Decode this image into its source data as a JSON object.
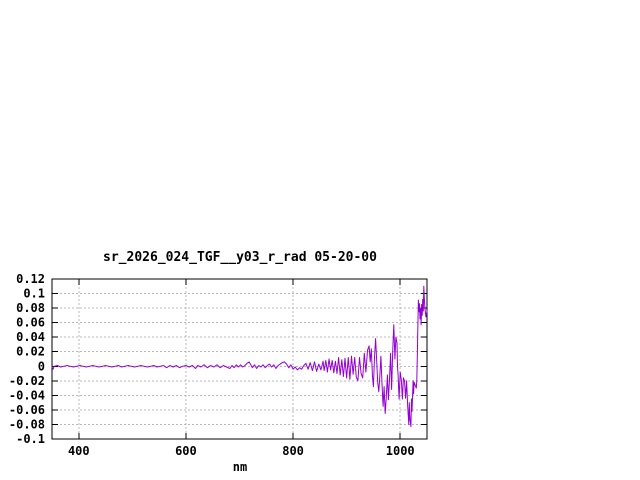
{
  "chart_data": {
    "type": "line",
    "title": "sr_2026_024_TGF__y03_r_rad 05-20-00",
    "xlabel": "nm",
    "ylabel": "",
    "xlim": [
      350,
      1050
    ],
    "ylim": [
      -0.1,
      0.12
    ],
    "grid": true,
    "legend": "none",
    "x_tick_values": [
      400,
      600,
      800,
      1000
    ],
    "x_tick_labels": [
      "400",
      "600",
      "800",
      "1000"
    ],
    "y_tick_values": [
      0.12,
      0.1,
      0.08,
      0.06,
      0.04,
      0.02,
      0,
      -0.02,
      -0.04,
      -0.06,
      -0.08,
      -0.1
    ],
    "y_tick_labels": [
      "0.12",
      "0.1",
      "0.08",
      "0.06",
      "0.04",
      "0.02",
      "0",
      "-0.02",
      "-0.04",
      "-0.06",
      "-0.08",
      "-0.1"
    ],
    "colors": {
      "line": "#9400d3",
      "grid": "#b8b8b8",
      "border": "#000000",
      "background": "#ffffff",
      "text": "#000000"
    },
    "series": [
      {
        "name": "sr_2026_024_TGF__y03_r_rad",
        "color": "#9400d3",
        "points": [
          [
            350,
            -0.001
          ],
          [
            352,
            -0.004
          ],
          [
            354,
            0
          ],
          [
            360,
            0.001
          ],
          [
            366,
            -0.001
          ],
          [
            372,
            0
          ],
          [
            378,
            0.001
          ],
          [
            384,
            0
          ],
          [
            390,
            -0.001
          ],
          [
            396,
            0
          ],
          [
            402,
            0.001
          ],
          [
            408,
            0
          ],
          [
            414,
            -0.001
          ],
          [
            420,
            0
          ],
          [
            426,
            0.001
          ],
          [
            432,
            0
          ],
          [
            438,
            -0.001
          ],
          [
            444,
            0
          ],
          [
            450,
            0.001
          ],
          [
            456,
            0
          ],
          [
            462,
            -0.001
          ],
          [
            468,
            0
          ],
          [
            474,
            0.001
          ],
          [
            480,
            -0.001
          ],
          [
            486,
            0
          ],
          [
            492,
            0.001
          ],
          [
            498,
            0
          ],
          [
            504,
            -0.001
          ],
          [
            510,
            0
          ],
          [
            516,
            0.001
          ],
          [
            522,
            0
          ],
          [
            528,
            -0.001
          ],
          [
            534,
            0
          ],
          [
            540,
            0.001
          ],
          [
            546,
            -0.001
          ],
          [
            552,
            0
          ],
          [
            558,
            0.001
          ],
          [
            564,
            -0.002
          ],
          [
            570,
            0.001
          ],
          [
            576,
            -0.001
          ],
          [
            582,
            0.001
          ],
          [
            588,
            -0.002
          ],
          [
            594,
            0
          ],
          [
            600,
            0.001
          ],
          [
            606,
            -0.001
          ],
          [
            612,
            0.001
          ],
          [
            618,
            -0.003
          ],
          [
            622,
            0.001
          ],
          [
            628,
            -0.001
          ],
          [
            634,
            0.002
          ],
          [
            640,
            -0.002
          ],
          [
            646,
            0.001
          ],
          [
            652,
            -0.001
          ],
          [
            658,
            0.002
          ],
          [
            664,
            -0.002
          ],
          [
            670,
            0.001
          ],
          [
            676,
            -0.001
          ],
          [
            682,
            -0.003
          ],
          [
            686,
            0.001
          ],
          [
            690,
            -0.002
          ],
          [
            694,
            0.002
          ],
          [
            698,
            -0.001
          ],
          [
            702,
            0.002
          ],
          [
            706,
            -0.001
          ],
          [
            710,
            0.001
          ],
          [
            714,
            0.004
          ],
          [
            718,
            0.006
          ],
          [
            721,
            0.002
          ],
          [
            724,
            -0.002
          ],
          [
            728,
            0.002
          ],
          [
            732,
            -0.003
          ],
          [
            736,
            0.001
          ],
          [
            740,
            -0.001
          ],
          [
            744,
            0.002
          ],
          [
            748,
            -0.002
          ],
          [
            752,
            0.001
          ],
          [
            756,
            0.003
          ],
          [
            760,
            -0.001
          ],
          [
            764,
            0.002
          ],
          [
            768,
            -0.003
          ],
          [
            772,
            0.001
          ],
          [
            776,
            0.003
          ],
          [
            780,
            0.005
          ],
          [
            784,
            0.006
          ],
          [
            788,
            0.003
          ],
          [
            792,
            -0.002
          ],
          [
            796,
            0.002
          ],
          [
            800,
            -0.004
          ],
          [
            804,
            -0.001
          ],
          [
            808,
            -0.005
          ],
          [
            812,
            -0.002
          ],
          [
            816,
            -0.004
          ],
          [
            820,
            0.001
          ],
          [
            824,
            0.004
          ],
          [
            828,
            -0.004
          ],
          [
            832,
            0.005
          ],
          [
            836,
            -0.006
          ],
          [
            840,
            0.006
          ],
          [
            844,
            -0.007
          ],
          [
            848,
            0.003
          ],
          [
            852,
            -0.005
          ],
          [
            856,
            0.007
          ],
          [
            858,
            -0.006
          ],
          [
            861,
            0.008
          ],
          [
            864,
            -0.008
          ],
          [
            867,
            0.01
          ],
          [
            870,
            -0.005
          ],
          [
            873,
            0.008
          ],
          [
            876,
            -0.009
          ],
          [
            879,
            0.007
          ],
          [
            882,
            -0.01
          ],
          [
            885,
            0.012
          ],
          [
            888,
            -0.012
          ],
          [
            891,
            0.009
          ],
          [
            894,
            -0.014
          ],
          [
            897,
            0.011
          ],
          [
            900,
            -0.016
          ],
          [
            903,
            0.012
          ],
          [
            906,
            -0.018
          ],
          [
            909,
            0.014
          ],
          [
            912,
            -0.011
          ],
          [
            915,
            0.012
          ],
          [
            918,
            -0.015
          ],
          [
            921,
            -0.02
          ],
          [
            924,
            0.012
          ],
          [
            927,
            -0.01
          ],
          [
            930,
            -0.016
          ],
          [
            933,
            0.018
          ],
          [
            936,
            -0.008
          ],
          [
            939,
            0.022
          ],
          [
            942,
            0.028
          ],
          [
            944,
            0.006
          ],
          [
            946,
            0.024
          ],
          [
            948,
            -0.012
          ],
          [
            950,
            -0.028
          ],
          [
            952,
            0.012
          ],
          [
            954,
            0.038
          ],
          [
            956,
            0.01
          ],
          [
            958,
            -0.022
          ],
          [
            960,
            -0.035
          ],
          [
            962,
            -0.012
          ],
          [
            964,
            0.014
          ],
          [
            966,
            -0.024
          ],
          [
            968,
            -0.055
          ],
          [
            970,
            -0.028
          ],
          [
            972,
            -0.065
          ],
          [
            974,
            -0.042
          ],
          [
            976,
            -0.012
          ],
          [
            978,
            -0.046
          ],
          [
            980,
            -0.018
          ],
          [
            982,
            0.018
          ],
          [
            984,
            -0.032
          ],
          [
            986,
            0.02
          ],
          [
            988,
            0.057
          ],
          [
            990,
            0.01
          ],
          [
            992,
            0.04
          ],
          [
            994,
            0.032
          ],
          [
            995,
            0
          ],
          [
            996,
            -0.012
          ],
          [
            998,
            -0.045
          ],
          [
            1000,
            -0.008
          ],
          [
            1002,
            -0.018
          ],
          [
            1004,
            -0.045
          ],
          [
            1006,
            -0.016
          ],
          [
            1008,
            -0.02
          ],
          [
            1010,
            -0.044
          ],
          [
            1012,
            -0.02
          ],
          [
            1014,
            -0.055
          ],
          [
            1016,
            -0.08
          ],
          [
            1017,
            -0.05
          ],
          [
            1018,
            -0.072
          ],
          [
            1020,
            -0.083
          ],
          [
            1021,
            -0.045
          ],
          [
            1022,
            -0.062
          ],
          [
            1024,
            -0.02
          ],
          [
            1025,
            -0.038
          ],
          [
            1026,
            -0.022
          ],
          [
            1028,
            -0.026
          ],
          [
            1030,
            -0.03
          ],
          [
            1031,
            -0.02
          ],
          [
            1032,
            0.02
          ],
          [
            1033,
            0.058
          ],
          [
            1034,
            0.091
          ],
          [
            1035,
            0.075
          ],
          [
            1036,
            0.086
          ],
          [
            1037,
            0.065
          ],
          [
            1038,
            0.08
          ],
          [
            1039,
            0.057
          ],
          [
            1040,
            0.085
          ],
          [
            1041,
            0.07
          ],
          [
            1042,
            0.092
          ],
          [
            1043,
            0.076
          ],
          [
            1044,
            0.11
          ],
          [
            1045,
            0.094
          ],
          [
            1046,
            0.08
          ],
          [
            1048,
            0.068
          ],
          [
            1050,
            0.076
          ]
        ]
      }
    ]
  }
}
